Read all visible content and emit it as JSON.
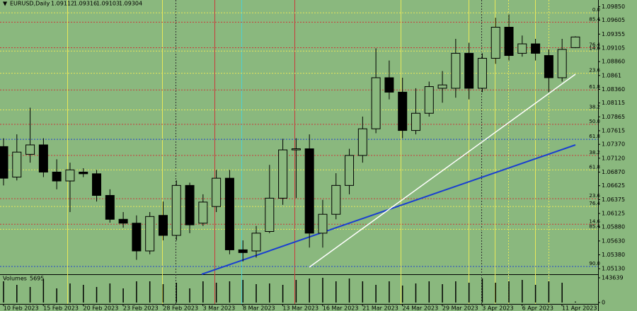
{
  "chart_data": {
    "type": "candlestick",
    "symbol": "EURUSD,Daily",
    "categories": [
      null,
      "10 Feb 2023",
      null,
      null,
      "15 Feb 2023",
      null,
      null,
      "20 Feb 2023",
      null,
      null,
      "23 Feb 2023",
      null,
      null,
      "28 Feb 2023",
      null,
      null,
      "3 Mar 2023",
      null,
      null,
      "8 Mar 2023",
      null,
      null,
      "13 Mar 2023",
      null,
      null,
      "16 Mar 2023",
      null,
      null,
      "21 Mar 2023",
      null,
      null,
      "24 Mar 2023",
      null,
      null,
      "29 Mar 2023",
      null,
      null,
      "3 Apr 2023",
      null,
      null,
      "6 Apr 2023",
      null,
      null,
      "11 Apr 2023"
    ],
    "open": [
      1.0733,
      1.0678,
      1.0719,
      1.0736,
      1.0687,
      1.0671,
      1.0687,
      1.0684,
      1.0645,
      1.0602,
      1.0595,
      1.0545,
      1.0609,
      1.0573,
      1.0663,
      1.0595,
      1.0625,
      1.0676,
      1.0547,
      1.0545,
      1.058,
      1.064,
      1.0727,
      1.0729,
      1.0577,
      1.0611,
      1.0663,
      1.0717,
      1.0765,
      1.0857,
      1.0831,
      1.0762,
      1.0793,
      1.0838,
      1.0838,
      1.0901,
      1.0838,
      1.0892,
      1.0948,
      1.0901,
      1.0918,
      1.0897,
      1.0857,
      1.09112
    ],
    "high": [
      1.0748,
      1.0755,
      1.0803,
      1.0748,
      1.071,
      1.0704,
      1.0694,
      1.0691,
      1.0656,
      1.0615,
      1.0609,
      1.0615,
      1.0634,
      1.0672,
      1.0668,
      1.0647,
      1.0691,
      1.0691,
      1.0564,
      1.059,
      1.07,
      1.0747,
      1.0748,
      1.0755,
      1.0637,
      1.0685,
      1.0729,
      1.0787,
      1.091,
      1.0888,
      1.0857,
      1.0838,
      1.085,
      1.0869,
      1.0927,
      1.092,
      1.0901,
      1.0965,
      1.0971,
      1.0933,
      1.0927,
      1.0908,
      1.0927,
      1.09316
    ],
    "low": [
      1.0663,
      1.0672,
      1.0704,
      1.0678,
      1.0656,
      1.0615,
      1.0678,
      1.0634,
      1.0596,
      1.0587,
      1.0529,
      1.0539,
      1.0564,
      1.0564,
      1.0577,
      1.059,
      1.0615,
      1.0539,
      1.0526,
      1.0533,
      1.0577,
      1.0628,
      1.064,
      1.0551,
      1.0551,
      1.0602,
      1.0647,
      1.0704,
      1.0757,
      1.0818,
      1.0748,
      1.0755,
      1.0787,
      1.0812,
      1.0821,
      1.0818,
      1.0831,
      1.0882,
      1.0888,
      1.0895,
      1.0888,
      1.0831,
      1.085,
      1.09103
    ],
    "close": [
      1.0676,
      1.0723,
      1.0736,
      1.0687,
      1.0671,
      1.0691,
      1.0684,
      1.0645,
      1.0602,
      1.0595,
      1.0545,
      1.0607,
      1.0573,
      1.0663,
      1.0592,
      1.0633,
      1.0676,
      1.0547,
      1.0542,
      1.0577,
      1.064,
      1.0727,
      1.0729,
      1.0577,
      1.0611,
      1.0663,
      1.0717,
      1.0765,
      1.0857,
      1.0831,
      1.0762,
      1.0793,
      1.0841,
      1.0844,
      1.0901,
      1.0838,
      1.0892,
      1.0948,
      1.0897,
      1.0918,
      1.0901,
      1.0857,
      1.0908,
      1.09304
    ],
    "up_color": "#8ab87e",
    "down_color": "#000000",
    "ylim": [
      1.0503,
      1.0997
    ],
    "yticks": [
      {
        "value": 1.0985,
        "label": "1.09850"
      },
      1.09605,
      1.09355,
      1.09105,
      {
        "value": 1.0886,
        "label": "1.08860"
      },
      1.0861,
      {
        "value": 1.0836,
        "label": "1.08360"
      },
      1.08115,
      1.07865,
      1.07615,
      {
        "value": 1.0737,
        "label": "1.07370"
      },
      {
        "value": 1.0712,
        "label": "1.07120"
      },
      {
        "value": 1.0687,
        "label": "1.06870"
      },
      1.06625,
      1.06375,
      1.06125,
      {
        "value": 1.0588,
        "label": "1.05880"
      },
      {
        "value": 1.0563,
        "label": "1.05630"
      },
      {
        "value": 1.0538,
        "label": "1.05380"
      },
      {
        "value": 1.0513,
        "label": "1.05130"
      }
    ],
    "levels": [
      {
        "label": "0.0",
        "value": 1.0974,
        "color": "#e8e85a"
      },
      {
        "label": "85.4",
        "value": 1.0957,
        "color": "#c83c3c"
      },
      {
        "label": "76.4",
        "value": 1.0911,
        "color": "#c83c3c"
      },
      {
        "label": "14.6",
        "value": 1.0905,
        "color": "#e8e85a"
      },
      {
        "label": "23.6",
        "value": 1.0865,
        "color": "#e8e85a"
      },
      {
        "label": "61.8",
        "value": 1.0835,
        "color": "#c83c3c"
      },
      {
        "label": "38.2",
        "value": 1.0799,
        "color": "#e8e85a"
      },
      {
        "label": "50.0",
        "value": 1.0773,
        "color": "#c83c3c"
      },
      {
        "label": "61.8",
        "value": 1.0746,
        "color": "#2244cc"
      },
      {
        "label": "38.2",
        "value": 1.0717,
        "color": "#c83c3c"
      },
      {
        "label": "61.8",
        "value": 1.0691,
        "color": "#e8e85a"
      },
      {
        "label": "23.6",
        "value": 1.0639,
        "color": "#c83c3c"
      },
      {
        "label": "76.4",
        "value": 1.0625,
        "color": "#e8e85a"
      },
      {
        "label": "14.6",
        "value": 1.0593,
        "color": "#c83c3c"
      },
      {
        "label": "85.4",
        "value": 1.0584,
        "color": "#e8e85a"
      },
      {
        "label": "90.0",
        "value": 1.0517,
        "color": "#2244cc"
      }
    ],
    "volume_label": "Volumes",
    "volumes": [
      123120,
      102600,
      90290,
      135430,
      82080,
      110810,
      102600,
      90290,
      110810,
      82080,
      123120,
      123120,
      106700,
      114910,
      82080,
      123120,
      114910,
      123120,
      131330,
      106700,
      110810,
      102600,
      131330,
      139540,
      143639,
      123120,
      139540,
      123120,
      102600,
      123120,
      98500,
      110810,
      123120,
      106700,
      123120,
      114910,
      139540,
      114910,
      123120,
      131330,
      102600,
      123120,
      114910,
      5695
    ],
    "volume_ylim": [
      0,
      143639
    ],
    "volume_yticks": [
      0,
      143639
    ]
  }
}
